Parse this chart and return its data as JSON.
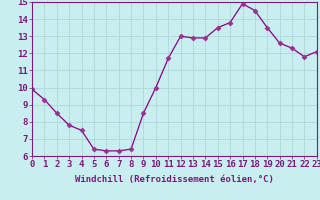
{
  "x": [
    0,
    1,
    2,
    3,
    4,
    5,
    6,
    7,
    8,
    9,
    10,
    11,
    12,
    13,
    14,
    15,
    16,
    17,
    18,
    19,
    20,
    21,
    22,
    23
  ],
  "y": [
    9.9,
    9.3,
    8.5,
    7.8,
    7.5,
    6.4,
    6.3,
    6.3,
    6.4,
    8.5,
    10.0,
    11.7,
    13.0,
    12.9,
    12.9,
    13.5,
    13.8,
    14.9,
    14.5,
    13.5,
    12.6,
    12.3,
    11.8,
    12.1
  ],
  "line_color": "#8b008b",
  "marker_color": "#9b3090",
  "marker": "D",
  "marker_size": 2.5,
  "bg_color": "#c8eef0",
  "grid_color": "#b0d8d8",
  "axis_color": "#7b1a7b",
  "tick_color": "#7b1a7b",
  "xlabel": "Windchill (Refroidissement éolien,°C)",
  "xlabel_fontsize": 6.5,
  "tick_fontsize": 6.5,
  "ylim": [
    6,
    15
  ],
  "yticks": [
    6,
    7,
    8,
    9,
    10,
    11,
    12,
    13,
    14,
    15
  ],
  "xlim": [
    0,
    23
  ],
  "xticks": [
    0,
    1,
    2,
    3,
    4,
    5,
    6,
    7,
    8,
    9,
    10,
    11,
    12,
    13,
    14,
    15,
    16,
    17,
    18,
    19,
    20,
    21,
    22,
    23
  ]
}
